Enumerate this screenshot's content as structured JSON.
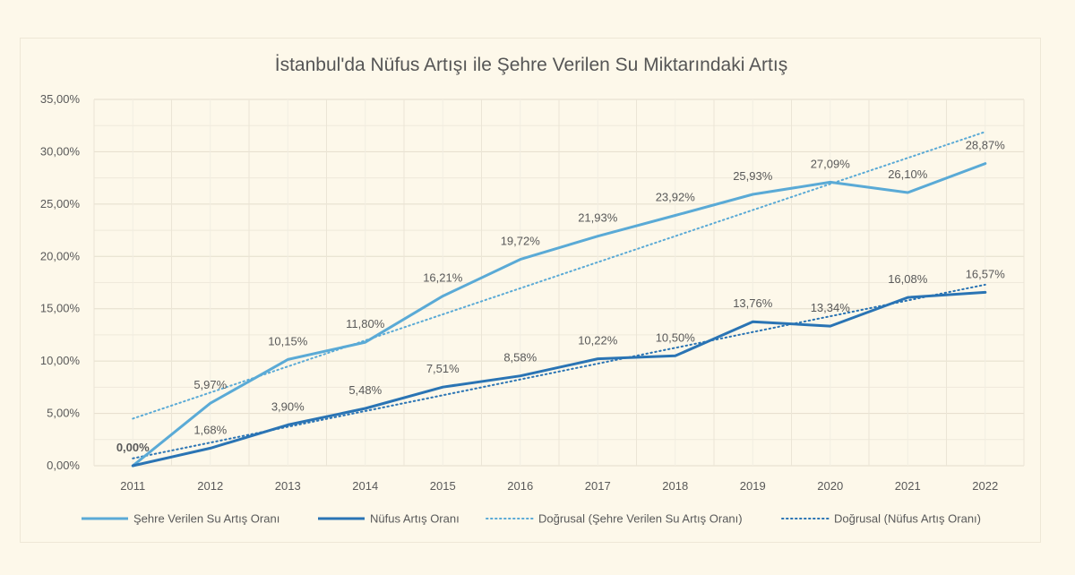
{
  "chart_data": {
    "type": "line",
    "title": "İstanbul'da Nüfus Artışı ile Şehre Verilen Su Miktarındaki Artış",
    "categories": [
      "2011",
      "2012",
      "2013",
      "2014",
      "2015",
      "2016",
      "2017",
      "2018",
      "2019",
      "2020",
      "2021",
      "2022"
    ],
    "ylim": [
      0,
      35
    ],
    "y_ticks": [
      "0,00%",
      "5,00%",
      "10,00%",
      "15,00%",
      "20,00%",
      "25,00%",
      "30,00%",
      "35,00%"
    ],
    "grid": true,
    "legend_position": "bottom",
    "series": [
      {
        "name": "Şehre Verilen Su Artış Oranı",
        "color": "#5aaad6",
        "values": [
          0.0,
          5.97,
          10.15,
          11.8,
          16.21,
          19.72,
          21.93,
          23.92,
          25.93,
          27.09,
          26.1,
          28.87
        ],
        "labels": [
          "0,00%",
          "5,97%",
          "10,15%",
          "11,80%",
          "16,21%",
          "19,72%",
          "21,93%",
          "23,92%",
          "25,93%",
          "27,09%",
          "26,10%",
          "28,87%"
        ]
      },
      {
        "name": "Nüfus Artış Oranı",
        "color": "#2a74b4",
        "values": [
          0.0,
          1.68,
          3.9,
          5.48,
          7.51,
          8.58,
          10.22,
          10.5,
          13.76,
          13.34,
          16.08,
          16.57
        ],
        "labels": [
          "0,00%",
          "1,68%",
          "3,90%",
          "5,48%",
          "7,51%",
          "8,58%",
          "10,22%",
          "10,50%",
          "13,76%",
          "13,34%",
          "16,08%",
          "16,57%"
        ]
      }
    ],
    "trendlines": [
      {
        "name": "Doğrusal (Şehre Verilen Su Artış Oranı)",
        "color": "#5aaad6",
        "start": 4.5,
        "end": 31.9
      },
      {
        "name": "Doğrusal (Nüfus Artış Oranı)",
        "color": "#2a74b4",
        "start": 0.7,
        "end": 17.3
      }
    ]
  }
}
